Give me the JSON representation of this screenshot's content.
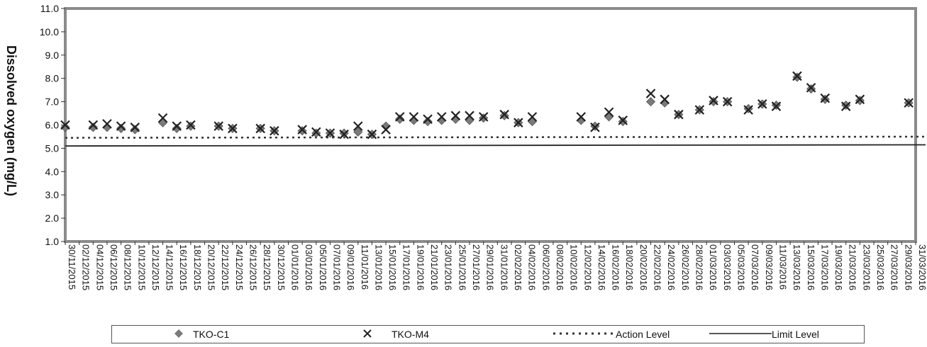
{
  "chart_data": {
    "type": "scatter",
    "ylabel": "Dissolved oxygen (mg/L)",
    "ylim": [
      1.0,
      11.0
    ],
    "yticks": [
      "1.0",
      "2.0",
      "3.0",
      "4.0",
      "5.0",
      "6.0",
      "7.0",
      "8.0",
      "9.0",
      "10.0",
      "11.0"
    ],
    "xlim": [
      "30/11/2015",
      "31/03/2016"
    ],
    "xticks": [
      "30/11/2015",
      "02/12/2015",
      "04/12/2015",
      "06/12/2015",
      "08/12/2015",
      "10/12/2015",
      "12/12/2015",
      "14/12/2015",
      "16/12/2015",
      "18/12/2015",
      "20/12/2015",
      "22/12/2015",
      "24/12/2015",
      "26/12/2015",
      "28/12/2015",
      "30/12/2015",
      "01/01/2016",
      "03/01/2016",
      "05/01/2016",
      "07/01/2016",
      "09/01/2016",
      "11/01/2016",
      "13/01/2016",
      "15/01/2016",
      "17/01/2016",
      "19/01/2016",
      "21/01/2016",
      "23/01/2016",
      "25/01/2016",
      "27/01/2016",
      "29/01/2016",
      "31/01/2016",
      "02/02/2016",
      "04/02/2016",
      "06/02/2016",
      "08/02/2016",
      "10/02/2016",
      "12/02/2016",
      "14/02/2016",
      "16/02/2016",
      "18/02/2016",
      "20/02/2016",
      "22/02/2016",
      "24/02/2016",
      "26/02/2016",
      "28/02/2016",
      "01/03/2016",
      "03/03/2016",
      "05/03/2016",
      "07/03/2016",
      "09/03/2016",
      "11/03/2016",
      "13/03/2016",
      "15/03/2016",
      "17/03/2016",
      "19/03/2016",
      "21/03/2016",
      "23/03/2016",
      "25/03/2016",
      "27/03/2016",
      "29/03/2016",
      "31/03/2016"
    ],
    "grid": false,
    "legend_position": "bottom",
    "series": [
      {
        "name": "TKO-C1",
        "marker": "diamond",
        "color": "#7a7a7a",
        "points": [
          [
            "30/11/2015",
            5.9
          ],
          [
            "04/12/2015",
            5.9
          ],
          [
            "06/12/2015",
            5.9
          ],
          [
            "08/12/2015",
            5.85
          ],
          [
            "10/12/2015",
            5.8
          ],
          [
            "14/12/2015",
            6.1
          ],
          [
            "16/12/2015",
            5.85
          ],
          [
            "18/12/2015",
            5.95
          ],
          [
            "22/12/2015",
            5.95
          ],
          [
            "24/12/2015",
            5.85
          ],
          [
            "28/12/2015",
            5.85
          ],
          [
            "30/12/2015",
            5.75
          ],
          [
            "03/01/2016",
            5.75
          ],
          [
            "05/01/2016",
            5.65
          ],
          [
            "07/01/2016",
            5.65
          ],
          [
            "09/01/2016",
            5.65
          ],
          [
            "11/01/2016",
            5.7
          ],
          [
            "13/01/2016",
            5.6
          ],
          [
            "15/01/2016",
            5.95
          ],
          [
            "17/01/2016",
            6.25
          ],
          [
            "19/01/2016",
            6.2
          ],
          [
            "21/01/2016",
            6.15
          ],
          [
            "23/01/2016",
            6.2
          ],
          [
            "25/01/2016",
            6.25
          ],
          [
            "27/01/2016",
            6.2
          ],
          [
            "29/01/2016",
            6.3
          ],
          [
            "01/02/2016",
            6.4
          ],
          [
            "03/02/2016",
            6.1
          ],
          [
            "05/02/2016",
            6.15
          ],
          [
            "12/02/2016",
            6.2
          ],
          [
            "14/02/2016",
            5.95
          ],
          [
            "16/02/2016",
            6.35
          ],
          [
            "18/02/2016",
            6.15
          ],
          [
            "22/02/2016",
            7.0
          ],
          [
            "24/02/2016",
            6.95
          ],
          [
            "26/02/2016",
            6.45
          ],
          [
            "29/02/2016",
            6.65
          ],
          [
            "02/03/2016",
            7.0
          ],
          [
            "04/03/2016",
            7.0
          ],
          [
            "07/03/2016",
            6.7
          ],
          [
            "09/03/2016",
            6.9
          ],
          [
            "11/03/2016",
            6.85
          ],
          [
            "14/03/2016",
            8.05
          ],
          [
            "16/03/2016",
            7.55
          ],
          [
            "18/03/2016",
            7.1
          ],
          [
            "21/03/2016",
            6.85
          ],
          [
            "23/03/2016",
            7.05
          ],
          [
            "30/03/2016",
            6.95
          ]
        ]
      },
      {
        "name": "TKO-M4",
        "marker": "x",
        "color": "#222222",
        "points": [
          [
            "30/11/2015",
            6.0
          ],
          [
            "04/12/2015",
            6.0
          ],
          [
            "06/12/2015",
            6.05
          ],
          [
            "08/12/2015",
            5.95
          ],
          [
            "10/12/2015",
            5.9
          ],
          [
            "14/12/2015",
            6.3
          ],
          [
            "16/12/2015",
            5.95
          ],
          [
            "18/12/2015",
            6.0
          ],
          [
            "22/12/2015",
            5.95
          ],
          [
            "24/12/2015",
            5.85
          ],
          [
            "28/12/2015",
            5.85
          ],
          [
            "30/12/2015",
            5.75
          ],
          [
            "03/01/2016",
            5.8
          ],
          [
            "05/01/2016",
            5.7
          ],
          [
            "07/01/2016",
            5.65
          ],
          [
            "09/01/2016",
            5.6
          ],
          [
            "11/01/2016",
            5.95
          ],
          [
            "13/01/2016",
            5.6
          ],
          [
            "15/01/2016",
            5.8
          ],
          [
            "17/01/2016",
            6.35
          ],
          [
            "19/01/2016",
            6.35
          ],
          [
            "21/01/2016",
            6.25
          ],
          [
            "23/01/2016",
            6.35
          ],
          [
            "25/01/2016",
            6.4
          ],
          [
            "27/01/2016",
            6.4
          ],
          [
            "29/01/2016",
            6.35
          ],
          [
            "01/02/2016",
            6.45
          ],
          [
            "03/02/2016",
            6.1
          ],
          [
            "05/02/2016",
            6.35
          ],
          [
            "12/02/2016",
            6.35
          ],
          [
            "14/02/2016",
            5.9
          ],
          [
            "16/02/2016",
            6.55
          ],
          [
            "18/02/2016",
            6.2
          ],
          [
            "22/02/2016",
            7.35
          ],
          [
            "24/02/2016",
            7.1
          ],
          [
            "26/02/2016",
            6.45
          ],
          [
            "29/02/2016",
            6.65
          ],
          [
            "02/03/2016",
            7.05
          ],
          [
            "04/03/2016",
            7.0
          ],
          [
            "07/03/2016",
            6.65
          ],
          [
            "09/03/2016",
            6.9
          ],
          [
            "11/03/2016",
            6.8
          ],
          [
            "14/03/2016",
            8.1
          ],
          [
            "16/03/2016",
            7.6
          ],
          [
            "18/03/2016",
            7.15
          ],
          [
            "21/03/2016",
            6.8
          ],
          [
            "23/03/2016",
            7.1
          ],
          [
            "30/03/2016",
            6.95
          ]
        ]
      }
    ],
    "reference_lines": [
      {
        "name": "Action Level",
        "style": "dotted",
        "color": "#333333",
        "from": [
          "30/11/2015",
          5.45
        ],
        "to": [
          "31/03/2016",
          5.5
        ]
      },
      {
        "name": "Limit Level",
        "style": "solid",
        "color": "#222222",
        "from": [
          "30/11/2015",
          5.1
        ],
        "to": [
          "31/03/2016",
          5.15
        ]
      }
    ],
    "plot_area_border_color": "#8a8a8a"
  },
  "legend": {
    "items": [
      {
        "label": "TKO-C1",
        "icon": "diamond-marker-icon"
      },
      {
        "label": "TKO-M4",
        "icon": "x-marker-icon"
      },
      {
        "label": "Action Level",
        "icon": "dotted-line-icon"
      },
      {
        "label": "Limit Level",
        "icon": "solid-line-icon"
      }
    ]
  }
}
